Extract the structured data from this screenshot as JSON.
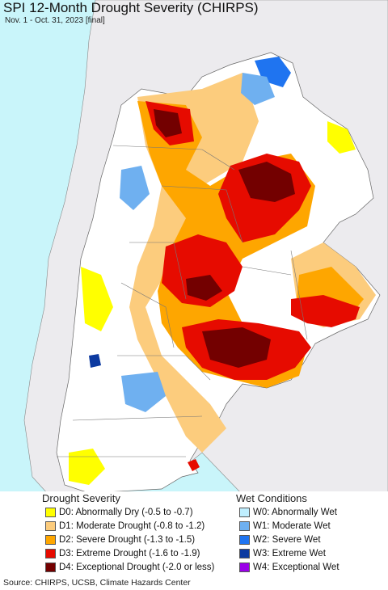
{
  "header": {
    "title": "SPI 12-Month Drought Severity (CHIRPS)",
    "subtitle": "Nov. 1 - Oct. 31, 2023 [final]"
  },
  "colors": {
    "ocean": "#c9f5fa",
    "foreign_land": "#ecebee",
    "no_drought": "#ffffff",
    "D0": "#ffff00",
    "D1": "#fccc7d",
    "D2": "#fea600",
    "D3": "#e60b00",
    "D4": "#730000",
    "W0": "#bfeefe",
    "W1": "#6fb0f0",
    "W2": "#1f74f0",
    "W3": "#0c3aa0",
    "W4": "#9a00e8"
  },
  "legend": {
    "drought": {
      "title": "Drought Severity",
      "items": [
        {
          "code": "D0",
          "label": "D0: Abnormally Dry (-0.5 to -0.7)"
        },
        {
          "code": "D1",
          "label": "D1: Moderate Drought (-0.8 to -1.2)"
        },
        {
          "code": "D2",
          "label": "D2: Severe Drought (-1.3 to -1.5)"
        },
        {
          "code": "D3",
          "label": "D3: Extreme Drought (-1.6 to -1.9)"
        },
        {
          "code": "D4",
          "label": "D4: Exceptional Drought (-2.0 or less)"
        }
      ]
    },
    "wet": {
      "title": "Wet Conditions",
      "items": [
        {
          "code": "W0",
          "label": "W0: Abnormally Wet"
        },
        {
          "code": "W1",
          "label": "W1: Moderate Wet"
        },
        {
          "code": "W2",
          "label": "W2: Severe Wet"
        },
        {
          "code": "W3",
          "label": "W3: Extreme Wet"
        },
        {
          "code": "W4",
          "label": "W4: Exceptional Wet"
        }
      ]
    }
  },
  "footer": {
    "source": "Source: CHIRPS, UCSB, Climate Hazards Center"
  }
}
